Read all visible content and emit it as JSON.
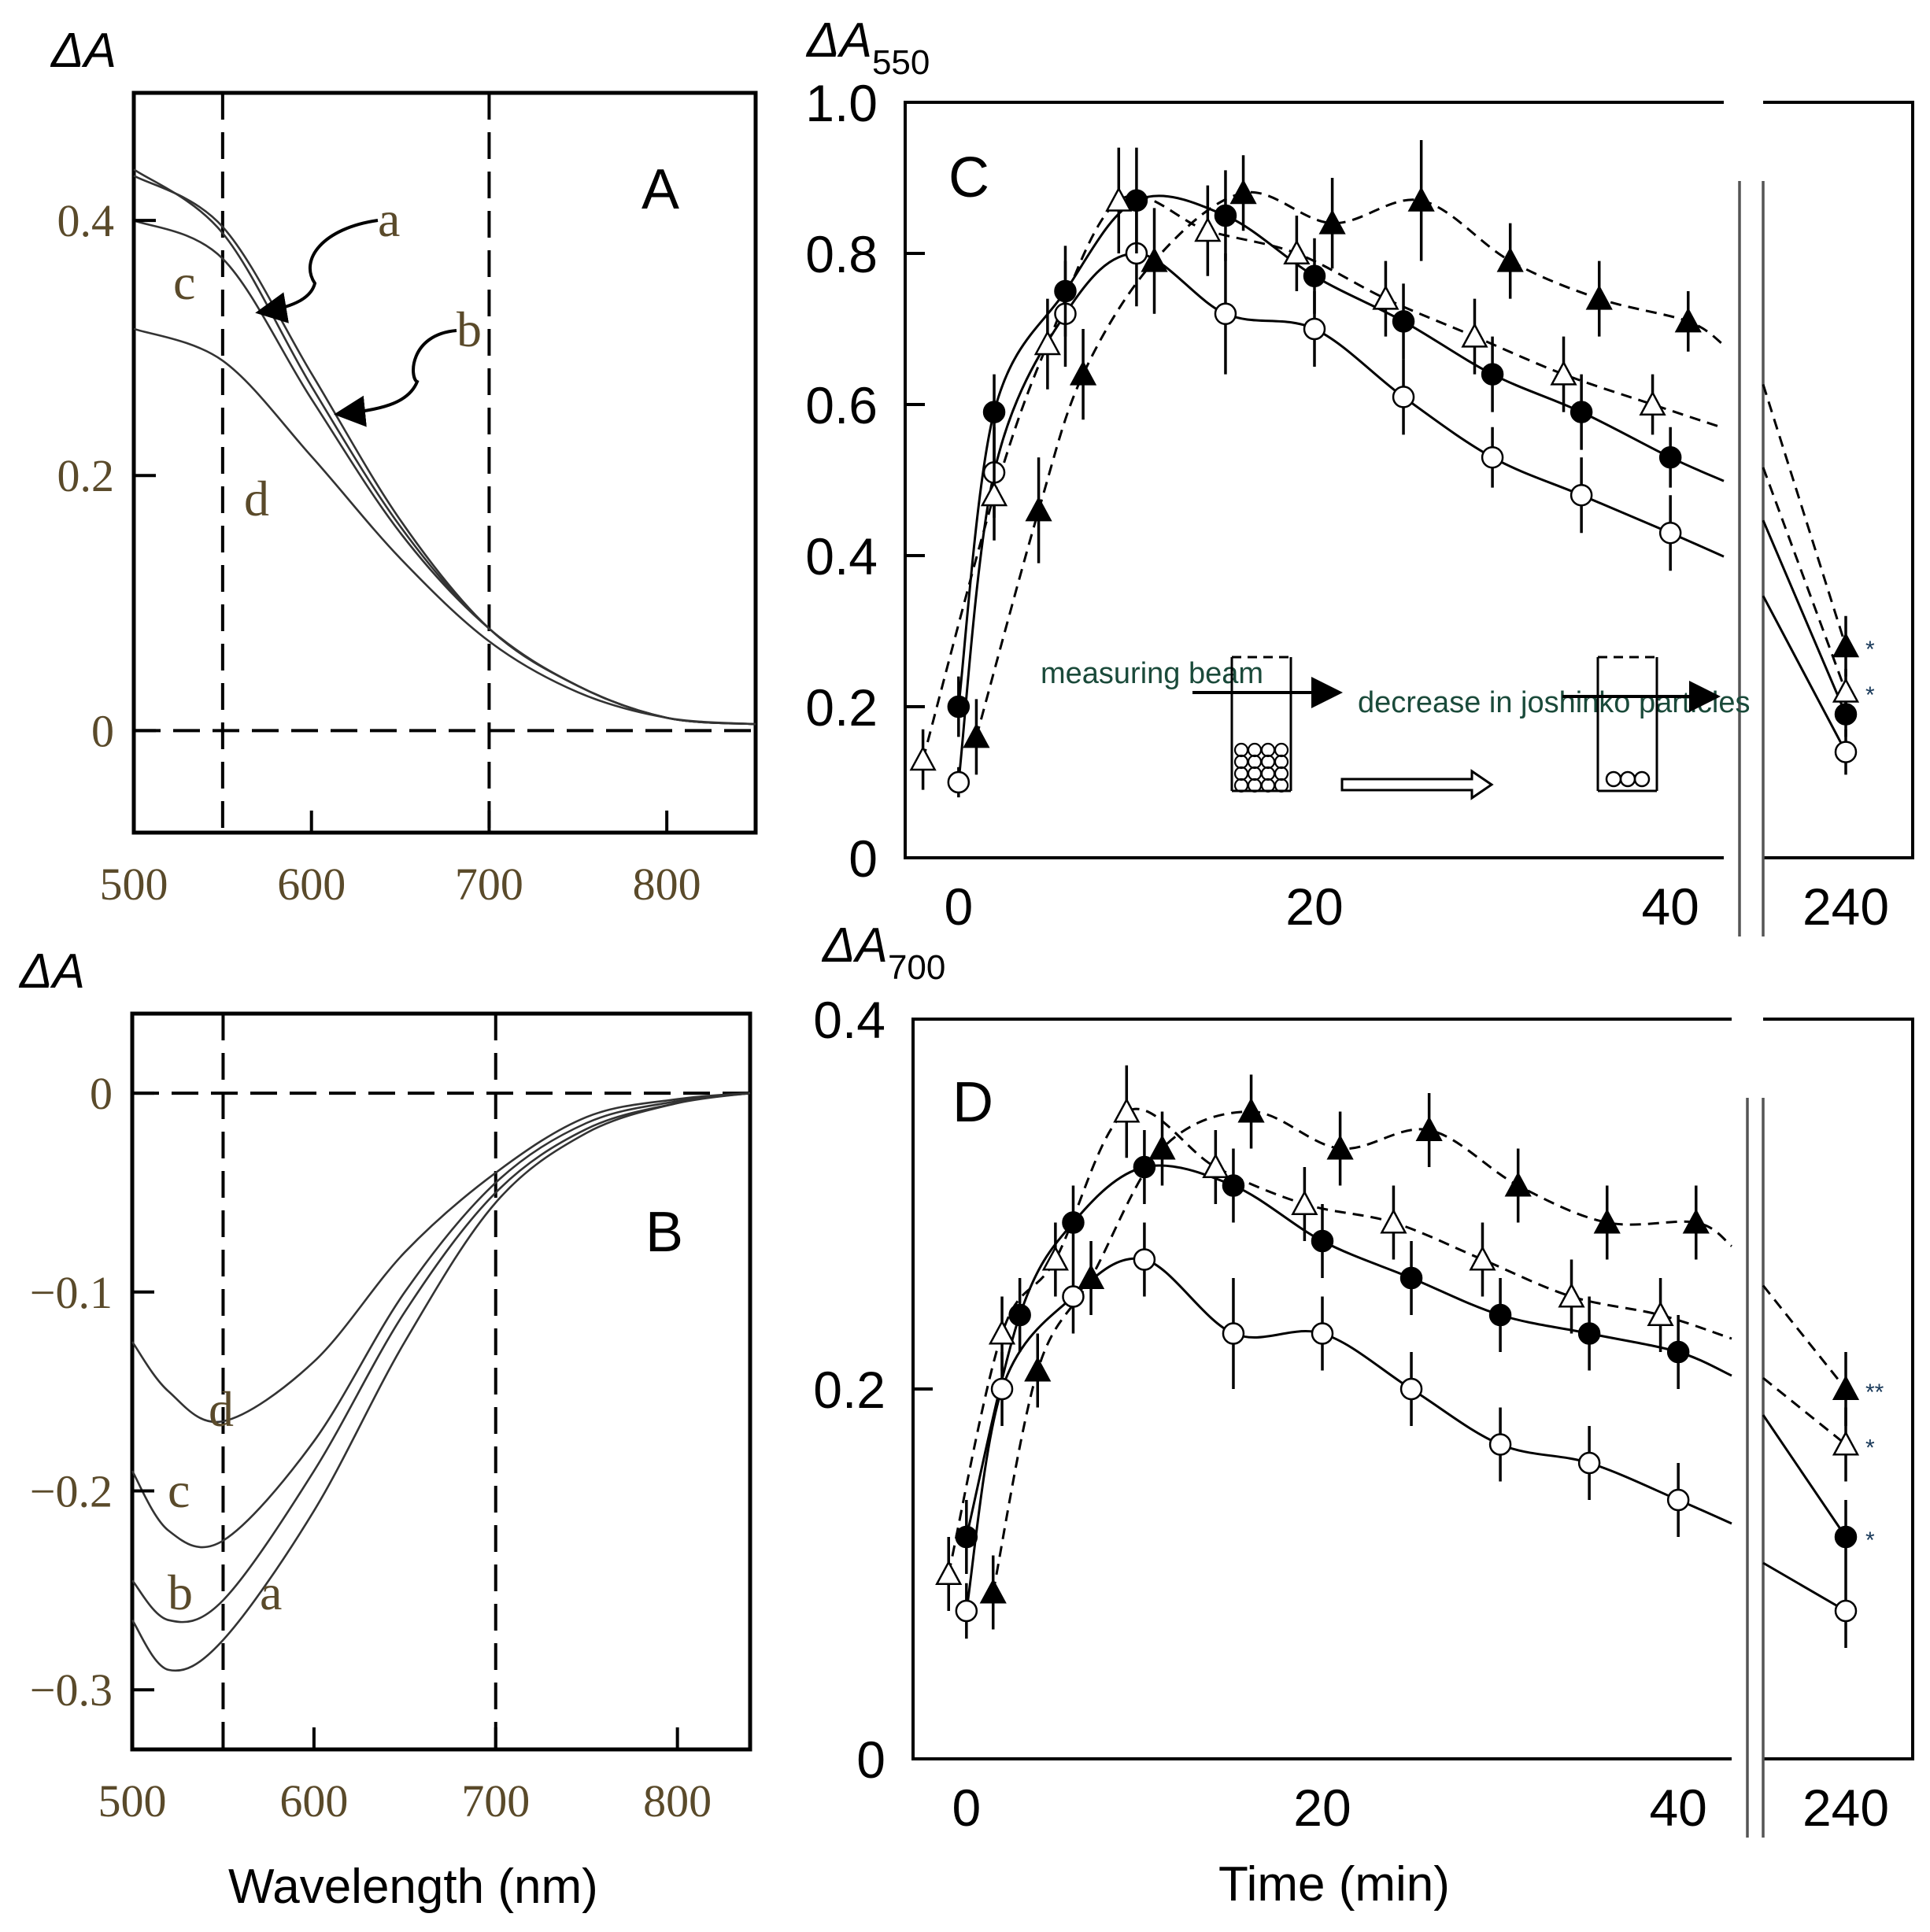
{
  "chart_data": [
    {
      "panel": "A",
      "type": "line",
      "ylabel": "ΔA",
      "xlabel": "",
      "xlim": [
        500,
        850
      ],
      "ylim": [
        -0.08,
        0.5
      ],
      "xticks": [
        "500",
        "600",
        "700",
        "800"
      ],
      "yticks": [
        "0.4",
        "0.2",
        "0"
      ],
      "reference_lines": {
        "vertical": [
          550,
          700
        ],
        "horizontal": [
          0
        ]
      },
      "series": [
        {
          "name": "a",
          "x": [
            500,
            550,
            600,
            650,
            700,
            750,
            800,
            850
          ],
          "values": [
            0.435,
            0.395,
            0.28,
            0.165,
            0.08,
            0.035,
            0.01,
            0.005
          ]
        },
        {
          "name": "b",
          "x": [
            500,
            550,
            600,
            650,
            700,
            750,
            800,
            850
          ],
          "values": [
            0.44,
            0.39,
            0.27,
            0.16,
            0.08,
            0.035,
            0.01,
            0.005
          ]
        },
        {
          "name": "c",
          "x": [
            500,
            550,
            600,
            650,
            700,
            750,
            800,
            850
          ],
          "values": [
            0.4,
            0.37,
            0.26,
            0.155,
            0.08,
            0.035,
            0.01,
            0.005
          ]
        },
        {
          "name": "d",
          "x": [
            500,
            550,
            600,
            650,
            700,
            750,
            800,
            850
          ],
          "values": [
            0.315,
            0.29,
            0.215,
            0.135,
            0.07,
            0.03,
            0.01,
            0.005
          ]
        }
      ]
    },
    {
      "panel": "B",
      "type": "line",
      "ylabel": "ΔA",
      "xlabel": "Wavelength (nm)",
      "xlim": [
        500,
        840
      ],
      "ylim": [
        -0.33,
        0.04
      ],
      "xticks": [
        "500",
        "600",
        "700",
        "800"
      ],
      "yticks": [
        "0",
        "−0.1",
        "−0.2",
        "−0.3"
      ],
      "reference_lines": {
        "vertical": [
          550,
          700
        ],
        "horizontal": [
          0
        ]
      },
      "series": [
        {
          "name": "a",
          "x": [
            500,
            520,
            550,
            600,
            650,
            700,
            750,
            800,
            840
          ],
          "values": [
            -0.265,
            -0.29,
            -0.275,
            -0.21,
            -0.125,
            -0.055,
            -0.02,
            -0.005,
            0.0
          ]
        },
        {
          "name": "b",
          "x": [
            500,
            520,
            550,
            600,
            650,
            700,
            750,
            800,
            840
          ],
          "values": [
            -0.245,
            -0.265,
            -0.255,
            -0.19,
            -0.11,
            -0.05,
            -0.018,
            -0.005,
            0.0
          ]
        },
        {
          "name": "c",
          "x": [
            500,
            520,
            550,
            600,
            650,
            700,
            750,
            800,
            840
          ],
          "values": [
            -0.19,
            -0.22,
            -0.225,
            -0.175,
            -0.1,
            -0.045,
            -0.015,
            -0.004,
            0.0
          ]
        },
        {
          "name": "d",
          "x": [
            500,
            520,
            550,
            600,
            650,
            700,
            750,
            800,
            840
          ],
          "values": [
            -0.125,
            -0.15,
            -0.165,
            -0.135,
            -0.08,
            -0.04,
            -0.012,
            -0.003,
            0.0
          ]
        }
      ]
    },
    {
      "panel": "C",
      "type": "scatter",
      "ylabel": "ΔA",
      "ylabel_sub": "550",
      "xlabel": "",
      "xlim": [
        -3,
        43
      ],
      "break_x": 240,
      "ylim": [
        0,
        1.0
      ],
      "xticks": [
        "0",
        "20",
        "40",
        "240"
      ],
      "yticks": [
        "1.0",
        "0.8",
        "0.6",
        "0.4",
        "0.2",
        "0"
      ],
      "inset_text": {
        "beam": "measuring beam",
        "decrease": "decrease in joshinko particles"
      },
      "series": [
        {
          "name": "open circle",
          "marker": "circle-open",
          "line": "solid",
          "x": [
            0,
            2,
            6,
            10,
            15,
            20,
            25,
            30,
            35,
            40,
            240
          ],
          "values": [
            0.1,
            0.51,
            0.72,
            0.8,
            0.72,
            0.7,
            0.61,
            0.53,
            0.48,
            0.43,
            0.14
          ],
          "err": [
            0.02,
            0.06,
            0.07,
            0.07,
            0.08,
            0.05,
            0.05,
            0.04,
            0.05,
            0.05,
            0.03
          ]
        },
        {
          "name": "filled circle",
          "marker": "circle-filled",
          "line": "solid",
          "x": [
            0,
            2,
            6,
            10,
            15,
            20,
            25,
            30,
            35,
            40,
            240
          ],
          "values": [
            0.2,
            0.59,
            0.75,
            0.87,
            0.85,
            0.77,
            0.71,
            0.64,
            0.59,
            0.53,
            0.19
          ],
          "err": [
            0.04,
            0.05,
            0.06,
            0.07,
            0.06,
            0.05,
            0.05,
            0.05,
            0.05,
            0.04,
            0.03
          ],
          "sig": ""
        },
        {
          "name": "open triangle",
          "marker": "triangle-open",
          "line": "dashed",
          "x": [
            -2,
            2,
            5,
            9,
            14,
            19,
            24,
            29,
            34,
            39,
            240
          ],
          "values": [
            0.13,
            0.48,
            0.68,
            0.87,
            0.83,
            0.8,
            0.74,
            0.69,
            0.64,
            0.6,
            0.22
          ],
          "err": [
            0.04,
            0.06,
            0.06,
            0.07,
            0.06,
            0.05,
            0.05,
            0.05,
            0.05,
            0.04,
            0.03
          ],
          "sig": "*"
        },
        {
          "name": "filled triangle",
          "marker": "triangle-filled",
          "line": "dashed",
          "x": [
            1,
            4.5,
            7,
            11,
            16,
            21,
            26,
            31,
            36,
            41,
            240
          ],
          "values": [
            0.16,
            0.46,
            0.64,
            0.79,
            0.88,
            0.84,
            0.87,
            0.79,
            0.74,
            0.71,
            0.28
          ],
          "err": [
            0.05,
            0.07,
            0.06,
            0.07,
            0.05,
            0.06,
            0.08,
            0.05,
            0.05,
            0.04,
            0.04
          ],
          "sig": "*"
        }
      ]
    },
    {
      "panel": "D",
      "type": "scatter",
      "ylabel": "ΔA",
      "ylabel_sub": "700",
      "xlabel": "Time (min)",
      "xlim": [
        -3,
        43
      ],
      "break_x": 240,
      "ylim": [
        0,
        0.4
      ],
      "xticks": [
        "0",
        "20",
        "40",
        "240"
      ],
      "yticks": [
        "0.4",
        "0.2",
        "0"
      ],
      "series": [
        {
          "name": "open circle",
          "marker": "circle-open",
          "line": "solid",
          "x": [
            0,
            2,
            6,
            10,
            15,
            20,
            25,
            30,
            35,
            40,
            240
          ],
          "values": [
            0.08,
            0.2,
            0.25,
            0.27,
            0.23,
            0.23,
            0.2,
            0.17,
            0.16,
            0.14,
            0.08
          ],
          "err": [
            0.015,
            0.02,
            0.02,
            0.02,
            0.03,
            0.02,
            0.02,
            0.02,
            0.02,
            0.02,
            0.02
          ]
        },
        {
          "name": "filled circle",
          "marker": "circle-filled",
          "line": "solid",
          "x": [
            0,
            3,
            6,
            10,
            15,
            20,
            25,
            30,
            35,
            40,
            240
          ],
          "values": [
            0.12,
            0.24,
            0.29,
            0.32,
            0.31,
            0.28,
            0.26,
            0.24,
            0.23,
            0.22,
            0.12
          ],
          "err": [
            0.02,
            0.02,
            0.02,
            0.02,
            0.02,
            0.02,
            0.02,
            0.02,
            0.02,
            0.02,
            0.02
          ],
          "sig": "*"
        },
        {
          "name": "open triangle",
          "marker": "triangle-open",
          "line": "dashed",
          "x": [
            -1,
            2,
            5,
            9,
            14,
            19,
            24,
            29,
            34,
            39,
            240
          ],
          "values": [
            0.1,
            0.23,
            0.27,
            0.35,
            0.32,
            0.3,
            0.29,
            0.27,
            0.25,
            0.24,
            0.17
          ],
          "err": [
            0.02,
            0.02,
            0.02,
            0.025,
            0.02,
            0.02,
            0.02,
            0.02,
            0.02,
            0.02,
            0.02
          ],
          "sig": "*"
        },
        {
          "name": "filled triangle",
          "marker": "triangle-filled",
          "line": "dashed",
          "x": [
            1.5,
            4,
            7,
            11,
            16,
            21,
            26,
            31,
            36,
            41,
            240
          ],
          "values": [
            0.09,
            0.21,
            0.26,
            0.33,
            0.35,
            0.33,
            0.34,
            0.31,
            0.29,
            0.29,
            0.2
          ],
          "err": [
            0.02,
            0.02,
            0.02,
            0.02,
            0.02,
            0.02,
            0.02,
            0.02,
            0.02,
            0.02,
            0.02
          ],
          "sig": "**"
        }
      ]
    }
  ],
  "labels": {
    "panel_A": "A",
    "panel_B": "B",
    "panel_C": "C",
    "panel_D": "D",
    "curve_a": "a",
    "curve_b": "b",
    "curve_c": "c",
    "curve_d": "d"
  }
}
